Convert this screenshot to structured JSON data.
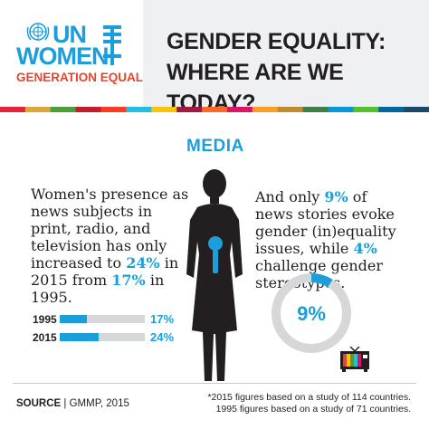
{
  "brand": {
    "logo_top": "UN",
    "logo_bottom": "WOMEN",
    "tagline": "GENERATION EQUALITY",
    "colors": {
      "blue": "#1b9ed9",
      "red": "#e5452b",
      "dark": "#231f20"
    }
  },
  "header": {
    "title_line1": "GENDER EQUALITY:",
    "title_line2": "WHERE ARE WE TODAY?"
  },
  "stripe_colors": [
    "#e5243b",
    "#dda63a",
    "#4c9f38",
    "#c5192d",
    "#ff3a21",
    "#26bde2",
    "#fcc30b",
    "#a21942",
    "#fd6925",
    "#dd1367",
    "#fd9d24",
    "#bf8b2e",
    "#3f7e44",
    "#0a97d9",
    "#56c02b",
    "#00689d",
    "#19486a"
  ],
  "section": {
    "heading": "MEDIA"
  },
  "left_text": {
    "p1": "Women's presence as news subjects in print, radio, and television has only increased to ",
    "pct_2015": "24%",
    "p2": " in 2015 from ",
    "pct_1995": "17%",
    "p3": " in 1995."
  },
  "right_text": {
    "p1": "And only ",
    "pct_a": "9%",
    "p2": " of news stories evoke gender (in)equality issues, while ",
    "pct_b": "4%",
    "p3": " challenge gender stereotypes."
  },
  "chart_data": [
    {
      "type": "bar",
      "categories": [
        "1995",
        "2015"
      ],
      "values": [
        17,
        24
      ],
      "value_labels": [
        "17%",
        "24%"
      ],
      "ylim": [
        0,
        100
      ]
    },
    {
      "type": "pie",
      "values": [
        9,
        91
      ],
      "label": "9%"
    }
  ],
  "footer": {
    "source_label": "SOURCE",
    "source_text": "GMMP, 2015",
    "footnote_line1": "*2015 figures based on a study of 114 countries.",
    "footnote_line2": "1995 figures based on a study of 71 countries."
  },
  "icons": [
    "un-emblem-icon",
    "woman-with-microphone-icon",
    "tv-icon"
  ]
}
